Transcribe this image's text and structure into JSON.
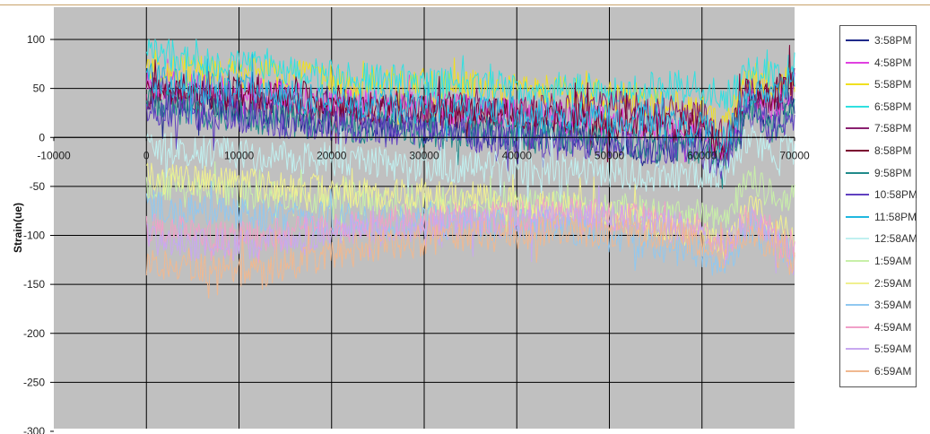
{
  "chart_data": {
    "type": "line",
    "title": "",
    "xlabel": "",
    "ylabel": "Strain(ue)",
    "xlim": [
      -10000,
      70000
    ],
    "ylim": [
      -300,
      100
    ],
    "x_ticks": [
      "-10000",
      "0",
      "10000",
      "20000",
      "30000",
      "40000",
      "50000",
      "60000",
      "70000"
    ],
    "y_ticks": [
      "100",
      "50",
      "0",
      "-50",
      "-100",
      "-150",
      "-200",
      "-250",
      "-300"
    ],
    "grid": true,
    "legend_position": "right",
    "x": [
      0,
      2500,
      5000,
      7500,
      10000,
      12500,
      15000,
      17500,
      20000,
      22500,
      25000,
      27500,
      30000,
      32500,
      35000,
      37500,
      40000,
      42500,
      45000,
      47500,
      50000,
      52500,
      55000,
      57500,
      60000,
      62500,
      65000,
      67500,
      70000
    ],
    "series": [
      {
        "name": "3:58PM",
        "color": "#1f2a8a",
        "values": [
          45,
          40,
          38,
          35,
          30,
          28,
          25,
          20,
          18,
          15,
          15,
          12,
          10,
          10,
          8,
          5,
          5,
          5,
          2,
          0,
          -5,
          -10,
          -15,
          -10,
          -5,
          -20,
          40,
          20,
          40
        ]
      },
      {
        "name": "4:58PM",
        "color": "#e040e0",
        "values": [
          55,
          52,
          50,
          50,
          48,
          45,
          42,
          40,
          38,
          35,
          35,
          32,
          30,
          30,
          28,
          25,
          25,
          22,
          20,
          20,
          18,
          15,
          15,
          10,
          5,
          -10,
          45,
          30,
          50
        ]
      },
      {
        "name": "5:58PM",
        "color": "#f0e020",
        "values": [
          75,
          70,
          68,
          65,
          65,
          68,
          65,
          60,
          58,
          55,
          55,
          55,
          55,
          52,
          52,
          50,
          48,
          48,
          45,
          45,
          42,
          40,
          35,
          30,
          25,
          10,
          60,
          50,
          60
        ]
      },
      {
        "name": "6:58PM",
        "color": "#30e0e0",
        "values": [
          90,
          85,
          80,
          78,
          75,
          75,
          70,
          65,
          62,
          60,
          60,
          58,
          55,
          55,
          55,
          52,
          50,
          50,
          50,
          48,
          48,
          50,
          50,
          52,
          55,
          40,
          70,
          60,
          70
        ]
      },
      {
        "name": "7:58PM",
        "color": "#8a2070",
        "values": [
          45,
          45,
          42,
          40,
          40,
          38,
          35,
          35,
          32,
          30,
          30,
          28,
          28,
          30,
          28,
          25,
          25,
          28,
          30,
          30,
          32,
          30,
          28,
          25,
          20,
          0,
          45,
          40,
          55
        ]
      },
      {
        "name": "8:58PM",
        "color": "#7a0030",
        "values": [
          50,
          48,
          48,
          45,
          45,
          45,
          42,
          40,
          38,
          35,
          32,
          30,
          28,
          28,
          25,
          25,
          22,
          20,
          20,
          18,
          15,
          15,
          12,
          10,
          5,
          -15,
          50,
          40,
          60
        ]
      },
      {
        "name": "9:58PM",
        "color": "#208a8a",
        "values": [
          35,
          30,
          28,
          25,
          22,
          20,
          18,
          15,
          12,
          10,
          10,
          8,
          5,
          5,
          5,
          5,
          2,
          0,
          0,
          -2,
          -5,
          -5,
          -10,
          -10,
          -15,
          -25,
          30,
          10,
          30
        ]
      },
      {
        "name": "10:58PM",
        "color": "#6040c0",
        "values": [
          30,
          28,
          25,
          22,
          20,
          18,
          15,
          12,
          10,
          10,
          8,
          5,
          5,
          2,
          2,
          0,
          0,
          -2,
          -5,
          -5,
          -8,
          -10,
          -10,
          -12,
          -15,
          -30,
          25,
          10,
          20
        ]
      },
      {
        "name": "11:58PM",
        "color": "#20b8e0",
        "values": [
          60,
          55,
          52,
          50,
          48,
          45,
          42,
          40,
          38,
          35,
          35,
          32,
          30,
          30,
          28,
          28,
          25,
          25,
          22,
          22,
          20,
          20,
          18,
          15,
          10,
          -5,
          50,
          40,
          60
        ]
      },
      {
        "name": "12:58AM",
        "color": "#c0f0f0",
        "values": [
          -10,
          -12,
          -15,
          -15,
          -18,
          -20,
          -20,
          -22,
          -22,
          -25,
          -25,
          -28,
          -28,
          -30,
          -30,
          -30,
          -32,
          -32,
          -35,
          -35,
          -35,
          -38,
          -40,
          -40,
          -35,
          -40,
          0,
          -20,
          -10
        ]
      },
      {
        "name": "1:59AM",
        "color": "#c8f0a8",
        "values": [
          -50,
          -50,
          -55,
          -55,
          -58,
          -60,
          -60,
          -60,
          -62,
          -62,
          -65,
          -65,
          -65,
          -68,
          -68,
          -70,
          -70,
          -70,
          -72,
          -72,
          -75,
          -75,
          -78,
          -80,
          -80,
          -90,
          -40,
          -60,
          -60
        ]
      },
      {
        "name": "2:59AM",
        "color": "#f0f090",
        "values": [
          -40,
          -42,
          -45,
          -45,
          -48,
          -50,
          -50,
          -52,
          -55,
          -55,
          -58,
          -60,
          -60,
          -62,
          -62,
          -65,
          -68,
          -70,
          -72,
          -75,
          -80,
          -85,
          -90,
          -95,
          -100,
          -110,
          -70,
          -90,
          -100
        ]
      },
      {
        "name": "3:59AM",
        "color": "#90c8f0",
        "values": [
          -70,
          -72,
          -75,
          -75,
          -78,
          -80,
          -80,
          -82,
          -82,
          -85,
          -85,
          -85,
          -85,
          -88,
          -88,
          -90,
          -90,
          -90,
          -92,
          -95,
          -100,
          -105,
          -110,
          -115,
          -120,
          -130,
          -90,
          -110,
          -120
        ]
      },
      {
        "name": "4:59AM",
        "color": "#f0a0c8",
        "values": [
          -95,
          -95,
          -98,
          -100,
          -100,
          -100,
          -98,
          -95,
          -92,
          -90,
          -88,
          -85,
          -85,
          -82,
          -82,
          -80,
          -80,
          -78,
          -78,
          -78,
          -80,
          -82,
          -85,
          -90,
          -95,
          -110,
          -80,
          -100,
          -120
        ]
      },
      {
        "name": "5:59AM",
        "color": "#c8a8f0",
        "values": [
          -105,
          -108,
          -110,
          -110,
          -110,
          -108,
          -105,
          -100,
          -98,
          -95,
          -95,
          -92,
          -90,
          -90,
          -88,
          -88,
          -85,
          -85,
          -85,
          -82,
          -82,
          -85,
          -88,
          -92,
          -98,
          -115,
          -85,
          -100,
          -130
        ]
      },
      {
        "name": "6:59AM",
        "color": "#f0b890",
        "values": [
          -125,
          -130,
          -135,
          -135,
          -138,
          -140,
          -130,
          -125,
          -120,
          -115,
          -110,
          -108,
          -105,
          -102,
          -100,
          -100,
          -98,
          -98,
          -95,
          -95,
          -95,
          -98,
          -100,
          -100,
          -105,
          -120,
          -90,
          -110,
          -130
        ]
      }
    ]
  }
}
